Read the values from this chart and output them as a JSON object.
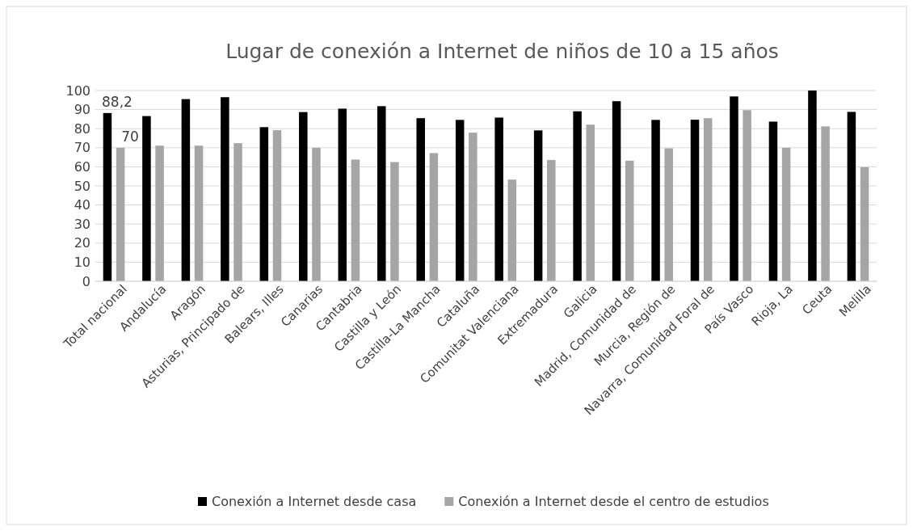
{
  "chart_data": {
    "type": "bar",
    "title": "Lugar de conexión a Internet de niños de 10 a 15 años",
    "categories": [
      "Total nacional",
      "Andalucía",
      "Aragón",
      "Asturias, Principado de",
      "Balears, Illes",
      "Canarias",
      "Cantabria",
      "Castilla y León",
      "Castilla-La Mancha",
      "Cataluña",
      "Comunitat Valenciana",
      "Extremadura",
      "Galicia",
      "Madrid, Comunidad de",
      "Murcia, Región de",
      "Navarra, Comunidad Foral de",
      "País Vasco",
      "Rioja, La",
      "Ceuta",
      "Melilla"
    ],
    "series": [
      {
        "name": "Conexión a Internet desde casa",
        "color": "#000000",
        "values": [
          88.2,
          86.6,
          95.5,
          96.5,
          80.8,
          88.7,
          90.5,
          91.8,
          85.5,
          84.6,
          85.8,
          79.1,
          89.1,
          94.4,
          84.6,
          84.7,
          96.9,
          83.7,
          100,
          88.8
        ],
        "value_labels": [
          "88,2",
          null,
          null,
          null,
          null,
          null,
          null,
          null,
          null,
          null,
          null,
          null,
          null,
          null,
          null,
          null,
          null,
          null,
          null,
          null
        ]
      },
      {
        "name": "Conexión a Internet desde el centro de estudios",
        "color": "#a5a5a5",
        "values": [
          70,
          71.1,
          71.1,
          72.4,
          79.2,
          70,
          63.8,
          62.5,
          67.2,
          77.9,
          53.3,
          63.6,
          82.1,
          63.2,
          69.7,
          85.5,
          89.7,
          70,
          81.2,
          59.8
        ],
        "value_labels": [
          "70",
          null,
          null,
          null,
          null,
          null,
          null,
          null,
          null,
          null,
          null,
          null,
          null,
          null,
          null,
          null,
          null,
          null,
          null,
          null
        ]
      }
    ],
    "ylim": [
      0,
      100
    ],
    "yticks": [
      0,
      10,
      20,
      30,
      40,
      50,
      60,
      70,
      80,
      90,
      100
    ],
    "grid": "y",
    "legend": "bottom"
  }
}
